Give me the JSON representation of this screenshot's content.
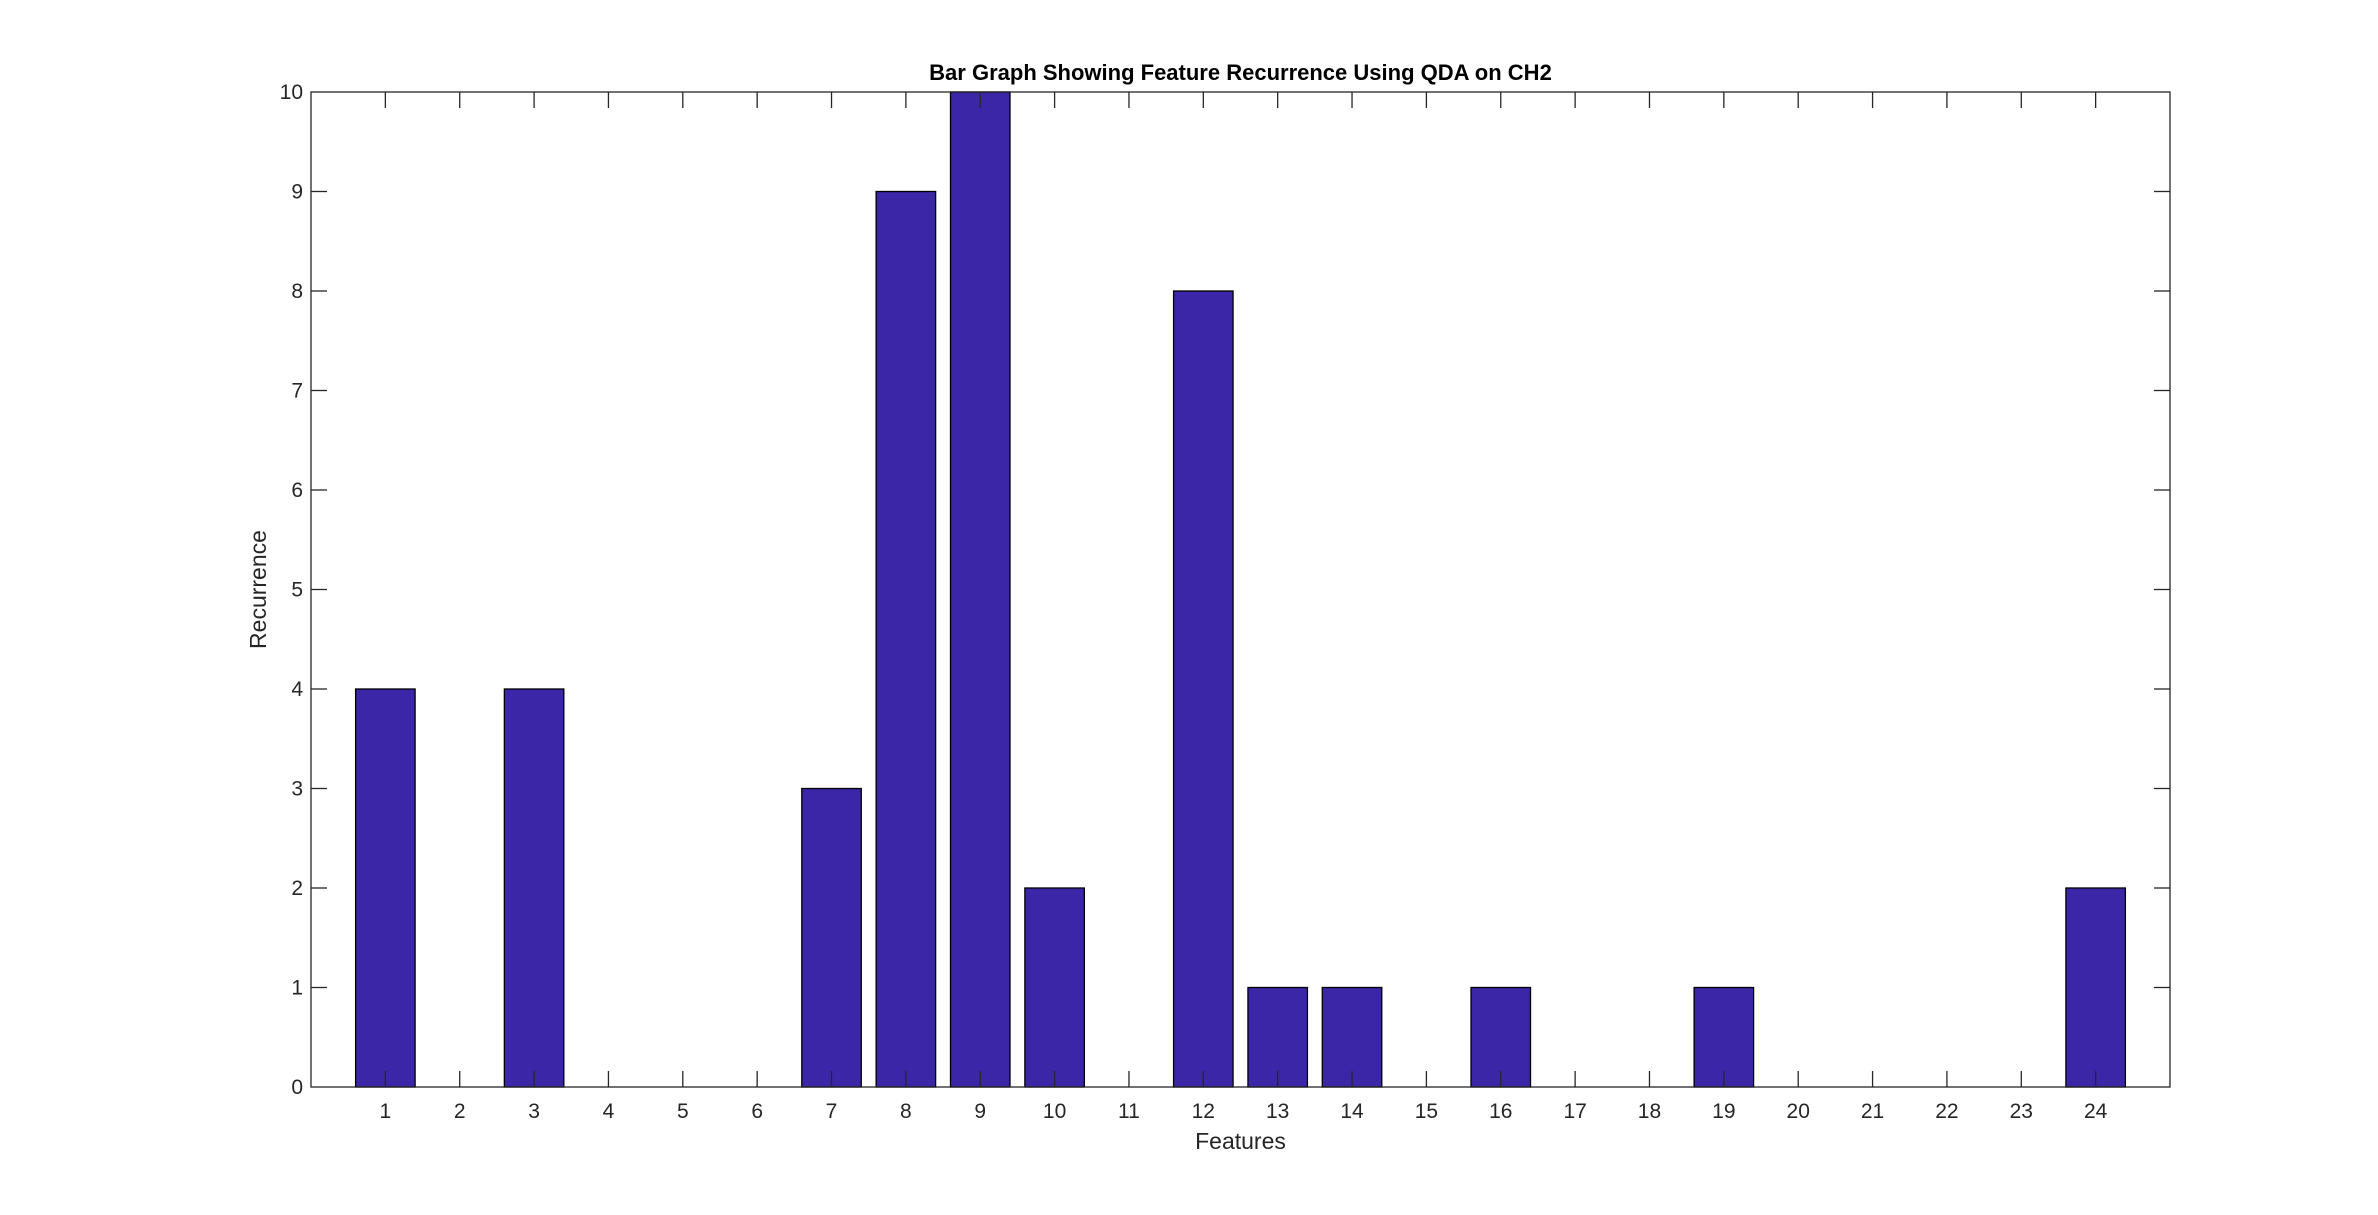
{
  "chart_data": {
    "type": "bar",
    "title": "Bar Graph Showing Feature Recurrence Using QDA on CH2",
    "xlabel": "Features",
    "ylabel": "Recurrence",
    "categories": [
      "1",
      "2",
      "3",
      "4",
      "5",
      "6",
      "7",
      "8",
      "9",
      "10",
      "11",
      "12",
      "13",
      "14",
      "15",
      "16",
      "17",
      "18",
      "19",
      "20",
      "21",
      "22",
      "23",
      "24"
    ],
    "values": [
      4,
      0,
      4,
      0,
      0,
      0,
      3,
      9,
      10,
      2,
      0,
      8,
      1,
      1,
      0,
      1,
      0,
      0,
      1,
      0,
      0,
      0,
      0,
      2
    ],
    "xlim": [
      0,
      25
    ],
    "ylim": [
      0,
      10
    ],
    "yticks": [
      0,
      1,
      2,
      3,
      4,
      5,
      6,
      7,
      8,
      9,
      10
    ],
    "grid": false,
    "legend": "none",
    "colors": {
      "bar_fill": "#3c26a8",
      "bar_edge": "#000000",
      "axes": "#262626",
      "background": "#ffffff"
    }
  }
}
